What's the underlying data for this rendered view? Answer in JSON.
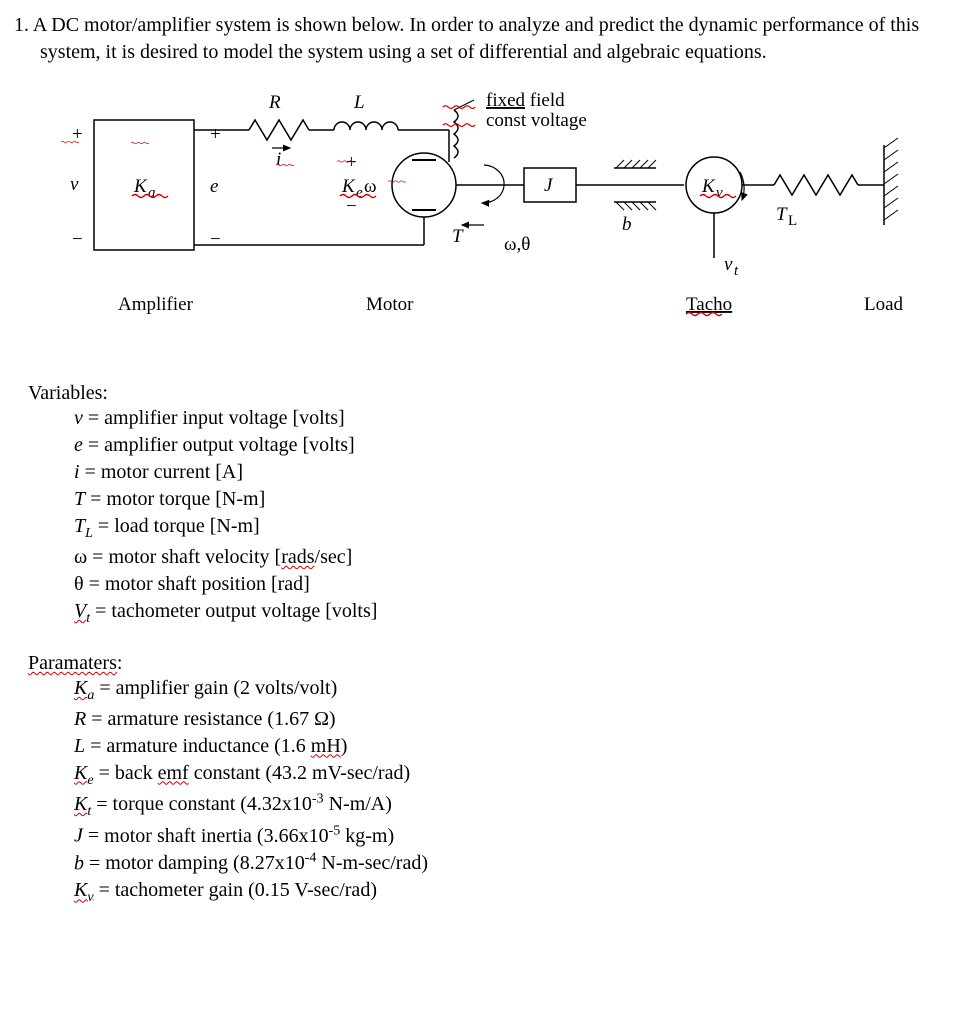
{
  "problem": {
    "number": "1.",
    "text": "A DC motor/amplifier system is shown below. In order to analyze and predict the dynamic performance of this system, it is desired to model the system using a set of differential and algebraic equations."
  },
  "diagram": {
    "labels": {
      "R": "R",
      "L": "L",
      "fixed_field": "fixed field",
      "const_voltage": "const voltage",
      "plus": "+",
      "minus": "−",
      "v": "v",
      "Ka": "K",
      "Ka_sub": "a",
      "e": "e",
      "i": "i",
      "Ke": "K",
      "Ke_sub": "e",
      "omega": "ω",
      "J": "J",
      "T": "T",
      "omega_theta": "ω,θ",
      "b": "b",
      "Kv": "K",
      "Kv_sub": "v",
      "TL": "T",
      "TL_sub": "L",
      "vt": "v",
      "vt_sub": "t",
      "Amplifier": "Amplifier",
      "Motor": "Motor",
      "Tacho": "Tacho",
      "Load": "Load"
    },
    "colors": {
      "stroke": "#000000",
      "wavy": "#d00000",
      "bg": "#ffffff"
    }
  },
  "variables": {
    "heading": "Variables:",
    "items": [
      {
        "sym_html": "<span class='ital'>v</span> =",
        "desc": "amplifier input voltage [volts]"
      },
      {
        "sym_html": "<span class='ital'>e</span> =",
        "desc": "amplifier output voltage [volts]"
      },
      {
        "sym_html": "<span class='ital'>i</span> =",
        "desc": "motor current [A]"
      },
      {
        "sym_html": "<span class='ital'>T</span> =",
        "desc": "motor torque [N-m]"
      },
      {
        "sym_html": "<span class='ital'>T<span class='sub'>L</span></span> =",
        "desc": "load torque [N-m]"
      },
      {
        "sym_html": "ω =",
        "desc_html": "motor shaft velocity [<span class='squig'>rads</span>/sec]"
      },
      {
        "sym_html": "θ =",
        "desc": "motor shaft position [rad]"
      },
      {
        "sym_html": "<span class='ital squig'>V<span class='sub'>t</span></span> =",
        "desc": "tachometer output voltage [volts]"
      }
    ]
  },
  "parameters": {
    "heading": "Paramaters",
    "items": [
      {
        "sym_html": "<span class='ital squig'>K<span class='sub'>a</span></span> =",
        "desc": "amplifier gain (2 volts/volt)"
      },
      {
        "sym_html": "<span class='ital'>R</span> =",
        "desc": "armature resistance (1.67 Ω)"
      },
      {
        "sym_html": "<span class='ital'>L</span> =",
        "desc_html": "armature inductance (1.6 <span class='squig'>mH</span>)"
      },
      {
        "sym_html": "<span class='ital squig'>K<span class='sub'>e</span></span> =",
        "desc_html": "back <span class='squig'>emf</span> constant (43.2 mV-sec/rad)"
      },
      {
        "sym_html": "<span class='ital squig'>K<span class='sub'>t</span></span> =",
        "desc_html": "torque constant (4.32x10<sup style='font-size:0.7em'>-3</sup> N-m/A)"
      },
      {
        "sym_html": "<span class='ital'>J</span> =",
        "desc_html": "motor shaft inertia (3.66x10<sup style='font-size:0.7em'>-5</sup> kg-m)"
      },
      {
        "sym_html": "<span class='ital'>b</span> =",
        "desc_html": "motor damping (8.27x10<sup style='font-size:0.7em'>-4</sup> N-m-sec/rad)"
      },
      {
        "sym_html": "<span class='ital squig'>K<span class='sub'>v</span></span> =",
        "desc": "tachometer gain (0.15 V-sec/rad)"
      }
    ]
  }
}
